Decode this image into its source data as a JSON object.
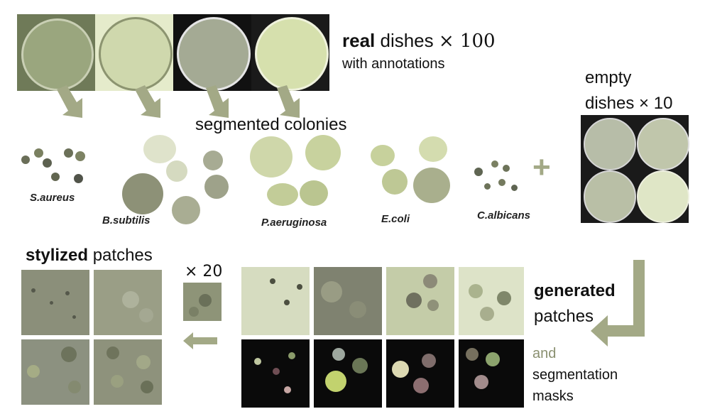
{
  "real_dishes": {
    "bold": "real",
    "rest": " dishes ",
    "count": "× 100",
    "sub": "with annotations"
  },
  "empty_dishes": {
    "line1": "empty",
    "line2": "dishes × 10"
  },
  "segmented": {
    "title": "segmented colonies",
    "plus": "+"
  },
  "species": [
    "S.aureus",
    "B.subtilis",
    "P.aeruginosa",
    "E.coli",
    "C.albicans"
  ],
  "stylized": {
    "bold": "stylized",
    "rest": " patches",
    "count": "× 20"
  },
  "generated": {
    "bold": "generated",
    "rest": "patches",
    "and": "and",
    "seg1": "segmentation",
    "seg2": "masks"
  },
  "colors": {
    "arrow": "#a3a986",
    "plate_light": "#d8e0b8",
    "plate_dark": "#2a2a2a",
    "colony": "#b8c29a",
    "mask_bg": "#0a0a0a"
  }
}
